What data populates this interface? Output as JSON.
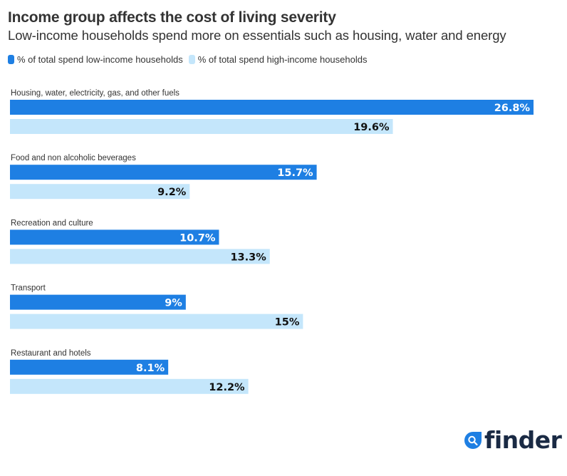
{
  "header": {
    "title": "Income group affects the cost of living severity",
    "subtitle": "Low-income households spend more on essentials such as housing, water and energy"
  },
  "legend": [
    {
      "label": "% of total spend low-income households",
      "color": "#1e7fe3"
    },
    {
      "label": "% of total spend high-income households",
      "color": "#c4e6fb"
    }
  ],
  "brand": {
    "name": "finder",
    "icon": "magnifier-drop-icon",
    "icon_color": "#1e7fe3",
    "text_color": "#1a2a44"
  },
  "chart_data": {
    "type": "bar",
    "orientation": "horizontal",
    "title": "Income group affects the cost of living severity",
    "subtitle": "Low-income households spend more on essentials such as housing, water and energy",
    "categories": [
      "Housing, water, electricity, gas, and other fuels",
      "Food and non alcoholic beverages",
      "Recreation and culture",
      "Transport",
      "Restaurant and hotels"
    ],
    "series": [
      {
        "name": "% of total spend low-income households",
        "color": "#1e7fe3",
        "label_color": "#ffffff",
        "values": [
          26.8,
          15.7,
          10.7,
          9,
          8.1
        ],
        "labels": [
          "26.8%",
          "15.7%",
          "10.7%",
          "9%",
          "8.1%"
        ]
      },
      {
        "name": "% of total spend high-income households",
        "color": "#c4e6fb",
        "label_color": "#111111",
        "values": [
          19.6,
          9.2,
          13.3,
          15,
          12.2
        ],
        "labels": [
          "19.6%",
          "9.2%",
          "13.3%",
          "15%",
          "12.2%"
        ]
      }
    ],
    "xlabel": "",
    "ylabel": "",
    "xlim": [
      0,
      26.8
    ],
    "grid": false,
    "legend_position": "top-left"
  }
}
